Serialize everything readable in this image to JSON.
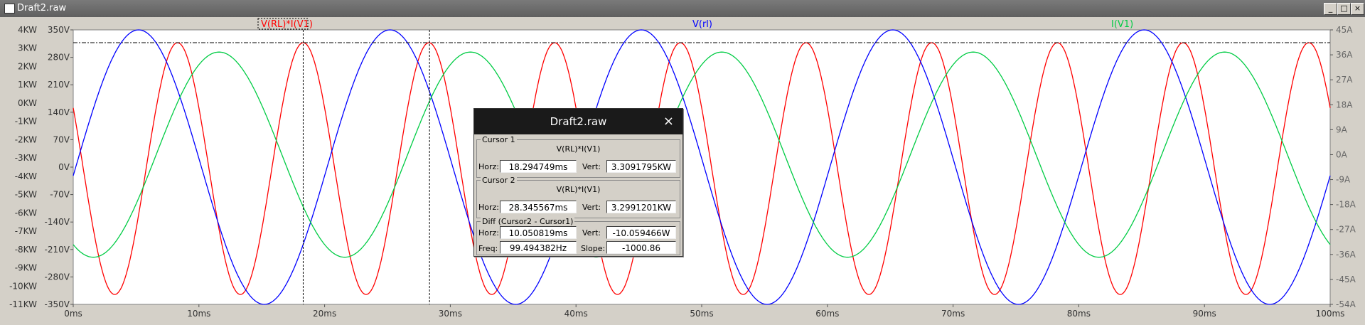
{
  "window": {
    "title": "Draft2.raw",
    "min": "_",
    "max": "□",
    "close": "×"
  },
  "traces": {
    "power": {
      "label": "V(RL)*I(V1)",
      "color": "#ff0000"
    },
    "voltage": {
      "label": "V(rl)",
      "color": "#0000ff"
    },
    "current": {
      "label": "I(V1)",
      "color": "#00cc44"
    }
  },
  "axes": {
    "x_ticks": [
      "0ms",
      "10ms",
      "20ms",
      "30ms",
      "40ms",
      "50ms",
      "60ms",
      "70ms",
      "80ms",
      "90ms",
      "100ms"
    ],
    "power_ticks": [
      "4KW",
      "3KW",
      "2KW",
      "1KW",
      "0KW",
      "-1KW",
      "-2KW",
      "-3KW",
      "-4KW",
      "-5KW",
      "-6KW",
      "-7KW",
      "-8KW",
      "-9KW",
      "-10KW",
      "-11KW"
    ],
    "voltage_ticks": [
      "350V",
      "280V",
      "210V",
      "140V",
      "70V",
      "0V",
      "-70V",
      "-140V",
      "-210V",
      "-280V",
      "-350V"
    ],
    "current_ticks": [
      "45A",
      "36A",
      "27A",
      "18A",
      "9A",
      "0A",
      "-9A",
      "-18A",
      "-27A",
      "-36A",
      "-45A",
      "-54A"
    ]
  },
  "chart_data": {
    "type": "line",
    "x_range_ms": [
      0,
      100
    ],
    "series": [
      {
        "name": "V(RL)*I(V1)",
        "axis": "left_power",
        "range": [
          -11000,
          4000
        ],
        "kind": "sine",
        "offset_W": -3580,
        "amplitude_W": 6880,
        "period_ms": 10,
        "peak_at_ms": 18.3
      },
      {
        "name": "V(rl)",
        "axis": "left_voltage",
        "range": [
          -350,
          350
        ],
        "kind": "sine",
        "amplitude_V": 350,
        "period_ms": 20,
        "peak_at_ms": 5.2
      },
      {
        "name": "I(V1)",
        "axis": "right_current",
        "range": [
          -54,
          45
        ],
        "kind": "sine",
        "amplitude_A": 37,
        "period_ms": 20,
        "peak_at_ms": 11.6
      }
    ],
    "cursor1_ms": 18.294749,
    "cursor2_ms": 28.345567,
    "cursor_level_W": 3300
  },
  "dialog": {
    "title": "Draft2.raw",
    "close": "×",
    "cursor1": {
      "legend": "Cursor 1",
      "signal": "V(RL)*I(V1)",
      "horz_label": "Horz:",
      "horz": "18.294749ms",
      "vert_label": "Vert:",
      "vert": "3.3091795KW"
    },
    "cursor2": {
      "legend": "Cursor 2",
      "signal": "V(RL)*I(V1)",
      "horz_label": "Horz:",
      "horz": "28.345567ms",
      "vert_label": "Vert:",
      "vert": "3.2991201KW"
    },
    "diff": {
      "legend": "Diff (Cursor2 - Cursor1)",
      "horz_label": "Horz:",
      "horz": "10.050819ms",
      "vert_label": "Vert:",
      "vert": "-10.059466W",
      "freq_label": "Freq:",
      "freq": "99.494382Hz",
      "slope_label": "Slope:",
      "slope": "-1000.86"
    }
  }
}
